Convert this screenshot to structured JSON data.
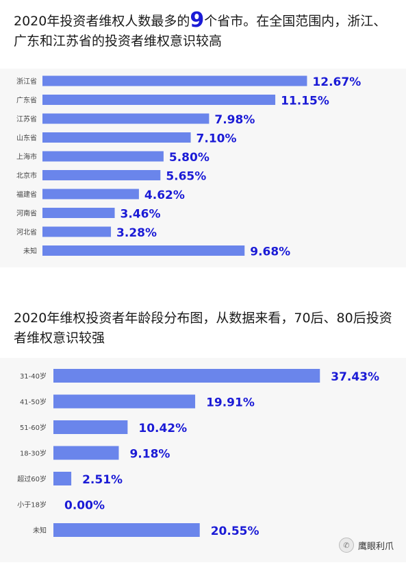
{
  "title1": {
    "before": "2020年投资者维权人数最多的",
    "highlight": "9",
    "after": "个省市。在全国范围内，浙江、广东和江苏省的投资者维权意识较高"
  },
  "title2": {
    "text": "2020年维权投资者年龄段分布图，从数据来看，70后、80后投资者维权意识较强"
  },
  "watermark": {
    "text": "鹰眼利爪",
    "icon": "wechat-icon"
  },
  "colors": {
    "bar": "#6a85eb",
    "value": "#1b1bd6",
    "label": "#444444"
  },
  "chart_data": [
    {
      "type": "bar",
      "orientation": "horizontal",
      "categories": [
        "浙江省",
        "广东省",
        "江苏省",
        "山东省",
        "上海市",
        "北京市",
        "福建省",
        "河南省",
        "河北省",
        "未知"
      ],
      "values": [
        12.67,
        11.15,
        7.98,
        7.1,
        5.8,
        5.65,
        4.62,
        3.46,
        3.28,
        9.68
      ],
      "data_labels": [
        "12.67%",
        "11.15%",
        "7.98%",
        "7.10%",
        "5.80%",
        "5.65%",
        "4.62%",
        "3.46%",
        "3.28%",
        "9.68%"
      ],
      "unit": "%",
      "title": "",
      "xlabel": "",
      "ylabel": "",
      "grid": false,
      "legend": "none"
    },
    {
      "type": "bar",
      "orientation": "horizontal",
      "categories": [
        "31-40岁",
        "41-50岁",
        "51-60岁",
        "18-30岁",
        "超过60岁",
        "小于18岁",
        "未知"
      ],
      "values": [
        37.43,
        19.91,
        10.42,
        9.18,
        2.51,
        0.0,
        20.55
      ],
      "data_labels": [
        "37.43%",
        "19.91%",
        "10.42%",
        "9.18%",
        "2.51%",
        "0.00%",
        "20.55%"
      ],
      "unit": "%",
      "title": "",
      "xlabel": "",
      "ylabel": "",
      "grid": false,
      "legend": "none"
    }
  ]
}
